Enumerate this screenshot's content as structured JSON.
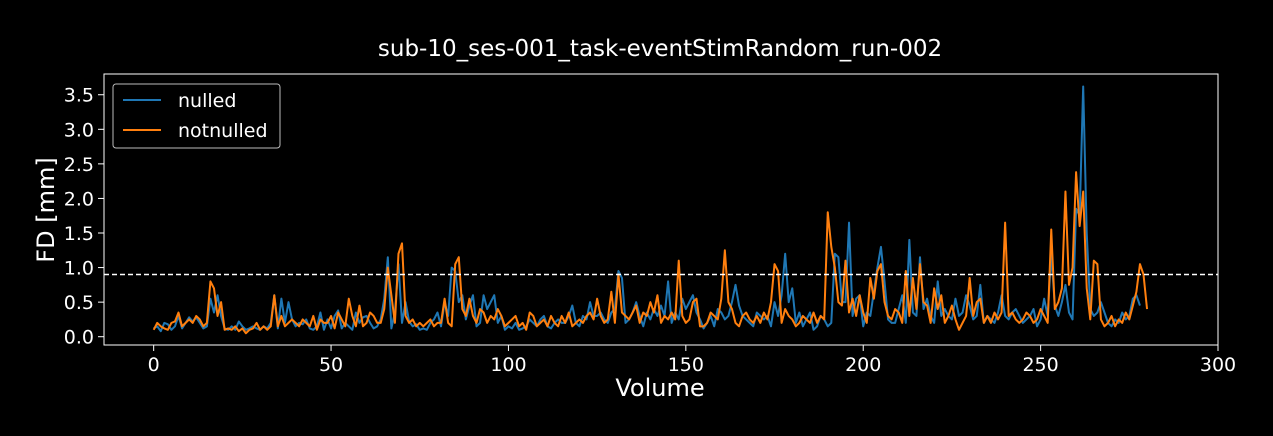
{
  "chart_data": {
    "type": "line",
    "title": "sub-10_ses-001_task-eventStimRandom_run-002",
    "xlabel": "Volume",
    "ylabel": "FD [mm]",
    "xlim": [
      -14,
      300
    ],
    "ylim": [
      -0.12,
      3.8
    ],
    "xticks": [
      0,
      50,
      100,
      150,
      200,
      250,
      300
    ],
    "yticks": [
      0.0,
      0.5,
      1.0,
      1.5,
      2.0,
      2.5,
      3.0,
      3.5
    ],
    "ytick_labels": [
      "0.0",
      "0.5",
      "1.0",
      "1.5",
      "2.0",
      "2.5",
      "3.0",
      "3.5"
    ],
    "grid": false,
    "legend": "top-left",
    "threshold": {
      "value": 0.9,
      "style": "dashed",
      "color": "#ffffff"
    },
    "series": [
      {
        "name": "nulled",
        "color": "#1f77b4",
        "values": [
          0.12,
          0.15,
          0.08,
          0.2,
          0.18,
          0.1,
          0.15,
          0.3,
          0.12,
          0.2,
          0.28,
          0.22,
          0.28,
          0.2,
          0.12,
          0.15,
          0.55,
          0.35,
          0.6,
          0.3,
          0.12,
          0.1,
          0.15,
          0.1,
          0.22,
          0.15,
          0.1,
          0.12,
          0.15,
          0.12,
          0.1,
          0.15,
          0.12,
          0.2,
          0.6,
          0.12,
          0.55,
          0.2,
          0.5,
          0.25,
          0.15,
          0.2,
          0.18,
          0.25,
          0.12,
          0.1,
          0.15,
          0.35,
          0.1,
          0.25,
          0.12,
          0.3,
          0.38,
          0.12,
          0.2,
          0.15,
          0.1,
          0.35,
          0.2,
          0.28,
          0.3,
          0.2,
          0.12,
          0.15,
          0.25,
          0.55,
          1.15,
          0.12,
          0.35,
          1.05,
          0.2,
          0.5,
          0.22,
          0.15,
          0.18,
          0.1,
          0.12,
          0.1,
          0.2,
          0.25,
          0.35,
          0.15,
          0.5,
          0.3,
          1.0,
          0.95,
          0.5,
          0.6,
          0.25,
          0.45,
          0.6,
          0.15,
          0.2,
          0.6,
          0.4,
          0.5,
          0.6,
          0.2,
          0.3,
          0.1,
          0.15,
          0.12,
          0.2,
          0.1,
          0.12,
          0.15,
          0.25,
          0.2,
          0.15,
          0.25,
          0.3,
          0.15,
          0.12,
          0.2,
          0.25,
          0.2,
          0.2,
          0.3,
          0.45,
          0.2,
          0.15,
          0.3,
          0.25,
          0.5,
          0.3,
          0.3,
          0.35,
          0.25,
          0.2,
          0.35,
          0.4,
          0.95,
          0.85,
          0.2,
          0.25,
          0.35,
          0.5,
          0.3,
          0.15,
          0.35,
          0.25,
          0.4,
          0.3,
          0.45,
          0.3,
          0.8,
          0.2,
          0.35,
          0.25,
          0.55,
          0.4,
          0.5,
          0.6,
          0.35,
          0.25,
          0.12,
          0.2,
          0.3,
          0.15,
          0.4,
          0.35,
          0.25,
          0.3,
          0.5,
          0.75,
          0.45,
          0.3,
          0.25,
          0.2,
          0.15,
          0.35,
          0.3,
          0.25,
          0.3,
          0.15,
          0.5,
          0.3,
          0.6,
          1.2,
          0.5,
          0.7,
          0.2,
          0.35,
          0.15,
          0.25,
          0.35,
          0.1,
          0.15,
          0.3,
          0.25,
          0.15,
          0.2,
          1.2,
          1.15,
          0.5,
          0.5,
          1.65,
          0.3,
          0.55,
          0.6,
          0.15,
          0.35,
          0.3,
          0.65,
          1.0,
          1.3,
          0.8,
          0.25,
          0.2,
          0.2,
          0.4,
          0.6,
          0.2,
          1.4,
          0.35,
          0.3,
          1.15,
          0.4,
          0.55,
          0.3,
          0.2,
          0.8,
          0.3,
          0.4,
          0.3,
          0.25,
          0.55,
          0.3,
          0.35,
          0.6,
          0.45,
          0.25,
          0.3,
          0.75,
          0.2,
          0.3,
          0.25,
          0.2,
          0.35,
          0.6,
          0.3,
          0.25,
          0.35,
          0.4,
          0.3,
          0.2,
          0.25,
          0.3,
          0.4,
          0.15,
          0.25,
          0.55,
          0.3,
          1.2,
          0.45,
          0.3,
          0.5,
          0.75,
          0.35,
          0.25,
          1.85,
          1.75,
          3.62,
          1.5,
          0.4,
          0.3,
          0.35,
          0.5,
          0.35,
          0.2,
          0.15,
          0.25,
          0.2,
          0.35,
          0.25,
          0.3,
          0.55,
          0.6,
          0.45
        ]
      },
      {
        "name": "notnulled",
        "color": "#ff7f0e",
        "values": [
          0.1,
          0.2,
          0.15,
          0.12,
          0.1,
          0.2,
          0.22,
          0.35,
          0.15,
          0.2,
          0.25,
          0.2,
          0.3,
          0.25,
          0.15,
          0.2,
          0.8,
          0.7,
          0.3,
          0.5,
          0.1,
          0.12,
          0.1,
          0.15,
          0.08,
          0.12,
          0.05,
          0.1,
          0.12,
          0.2,
          0.1,
          0.15,
          0.1,
          0.15,
          0.6,
          0.15,
          0.3,
          0.15,
          0.2,
          0.25,
          0.2,
          0.15,
          0.25,
          0.2,
          0.15,
          0.3,
          0.1,
          0.25,
          0.2,
          0.2,
          0.3,
          0.12,
          0.35,
          0.25,
          0.15,
          0.55,
          0.3,
          0.15,
          0.45,
          0.15,
          0.2,
          0.35,
          0.3,
          0.2,
          0.2,
          0.4,
          1.0,
          0.6,
          0.2,
          1.2,
          1.35,
          0.3,
          0.2,
          0.25,
          0.15,
          0.2,
          0.15,
          0.2,
          0.25,
          0.15,
          0.2,
          0.2,
          0.55,
          0.2,
          0.15,
          1.05,
          1.15,
          0.4,
          0.3,
          0.55,
          0.3,
          0.2,
          0.4,
          0.35,
          0.2,
          0.3,
          0.25,
          0.4,
          0.3,
          0.15,
          0.2,
          0.25,
          0.3,
          0.15,
          0.2,
          0.1,
          0.35,
          0.3,
          0.15,
          0.2,
          0.25,
          0.15,
          0.3,
          0.2,
          0.15,
          0.3,
          0.2,
          0.35,
          0.15,
          0.2,
          0.25,
          0.2,
          0.3,
          0.35,
          0.25,
          0.55,
          0.3,
          0.2,
          0.25,
          0.65,
          0.2,
          0.9,
          0.35,
          0.3,
          0.25,
          0.35,
          0.45,
          0.2,
          0.35,
          0.3,
          0.5,
          0.35,
          0.6,
          0.2,
          0.3,
          0.25,
          0.35,
          0.25,
          1.1,
          0.3,
          0.2,
          0.25,
          0.5,
          0.55,
          0.15,
          0.15,
          0.2,
          0.35,
          0.3,
          0.25,
          0.55,
          1.25,
          0.5,
          0.4,
          0.2,
          0.15,
          0.3,
          0.35,
          0.25,
          0.2,
          0.3,
          0.2,
          0.35,
          0.25,
          0.5,
          1.05,
          0.95,
          0.2,
          0.4,
          0.3,
          0.25,
          0.15,
          0.2,
          0.3,
          0.25,
          0.2,
          0.35,
          0.2,
          0.3,
          0.25,
          1.8,
          1.3,
          1.0,
          0.5,
          0.45,
          1.1,
          0.35,
          0.55,
          0.3,
          0.6,
          0.35,
          0.2,
          0.85,
          0.55,
          0.95,
          1.05,
          0.5,
          0.3,
          0.25,
          0.4,
          0.35,
          0.2,
          0.95,
          0.3,
          0.85,
          0.4,
          1.05,
          0.5,
          0.45,
          0.2,
          0.7,
          0.4,
          0.6,
          0.2,
          0.3,
          0.45,
          0.25,
          0.1,
          0.2,
          0.3,
          0.85,
          0.3,
          0.5,
          0.55,
          0.2,
          0.3,
          0.2,
          0.35,
          0.25,
          0.35,
          1.65,
          0.3,
          0.35,
          0.25,
          0.2,
          0.25,
          0.35,
          0.3,
          0.2,
          0.25,
          0.4,
          0.3,
          0.2,
          1.55,
          0.4,
          0.5,
          0.7,
          2.1,
          0.75,
          1.0,
          2.38,
          1.6,
          2.1,
          0.7,
          0.25,
          1.1,
          1.05,
          0.25,
          0.15,
          0.2,
          0.3,
          0.15,
          0.25,
          0.2,
          0.35,
          0.25,
          0.45,
          0.65,
          1.05,
          0.9,
          0.4
        ]
      }
    ]
  }
}
